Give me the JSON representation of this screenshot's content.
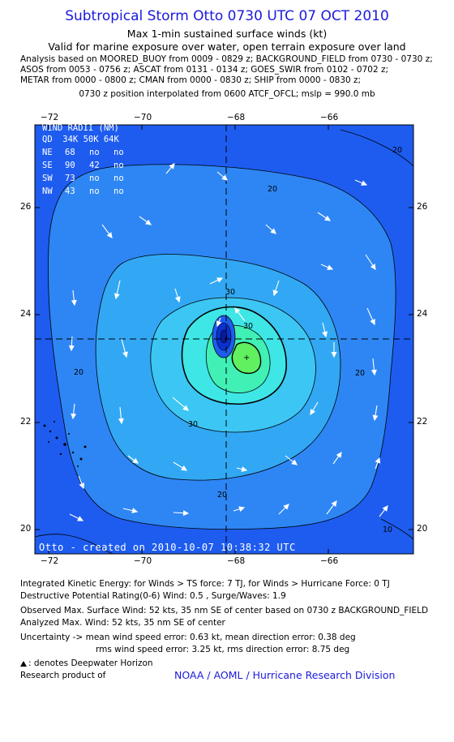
{
  "title": "Subtropical Storm Otto 0730 UTC 07 OCT 2010",
  "subtitle1": "Max 1-min sustained surface winds (kt)",
  "subtitle2": "Valid for marine exposure over water, open terrain exposure over land",
  "analysis_lines": [
    "Analysis based on MOORED_BUOY from 0009 - 0829 z; BACKGROUND_FIELD from 0730 - 0730 z;",
    "ASOS from 0053 - 0756 z; ASCAT from 0131 - 0134 z; GOES_SWIR from 0102 - 0702 z;",
    "METAR from 0000 - 0800 z; CMAN from 0000 - 0830 z; SHIP from 0000 - 0830 z;"
  ],
  "position_line": "0730 z position interpolated from 0600 ATCF_OFCL; mslp = 990.0 mb",
  "lon_ticks": [
    "−72",
    "−70",
    "−68",
    "−66"
  ],
  "lat_ticks": [
    "26",
    "24",
    "22",
    "20"
  ],
  "wind_radii": {
    "header": "WIND RADII (NM)",
    "columns": "QD  34K 50K 64K",
    "rows": [
      {
        "qd": "NE",
        "k34": "68",
        "k50": "no",
        "k64": "no"
      },
      {
        "qd": "SE",
        "k34": "90",
        "k50": "42",
        "k64": "no"
      },
      {
        "qd": "SW",
        "k34": "73",
        "k50": "no",
        "k64": "no"
      },
      {
        "qd": "NW",
        "k34": "43",
        "k50": "no",
        "k64": "no"
      }
    ]
  },
  "contour_labels": [
    "20",
    "20",
    "20",
    "20",
    "30",
    "30",
    "30",
    "10",
    "20"
  ],
  "watermark": "Otto - created on 2010-10-07 10:38:32 UTC",
  "footer": {
    "ike": "Integrated Kinetic Energy:  for Winds > TS force: 7 TJ,  for Winds > Hurricane Force: 0 TJ",
    "dpr": "Destructive Potential Rating(0-6)   Wind: 0.5 , Surge/Waves: 1.9",
    "obs_max": "Observed Max. Surface Wind: 52 kts, 35 nm SE of center based on 0730 z BACKGROUND_FIELD",
    "ana_max": "Analyzed Max. Wind: 52 kts, 35 nm SE of center",
    "uncert1": "Uncertainty -> mean wind speed error: 0.63 kt,   mean direction error: 0.38 deg",
    "uncert2": "rms wind speed error: 3.25 kt,   rms direction error: 8.75 deg",
    "dwh": ": denotes Deepwater Horizon",
    "research": "Research product of",
    "org": "NOAA / AOML / Hurricane Research Division"
  },
  "colors": {
    "title_blue": "#1a1adc",
    "field_outer": "#1e5cf0",
    "field_20": "#2e86f4",
    "field_25": "#32a8f4",
    "field_30": "#3cc6f4",
    "field_35": "#3ee6e6",
    "field_40": "#40f0b4",
    "field_45": "#60f060",
    "low_center": "#0a32d2"
  }
}
